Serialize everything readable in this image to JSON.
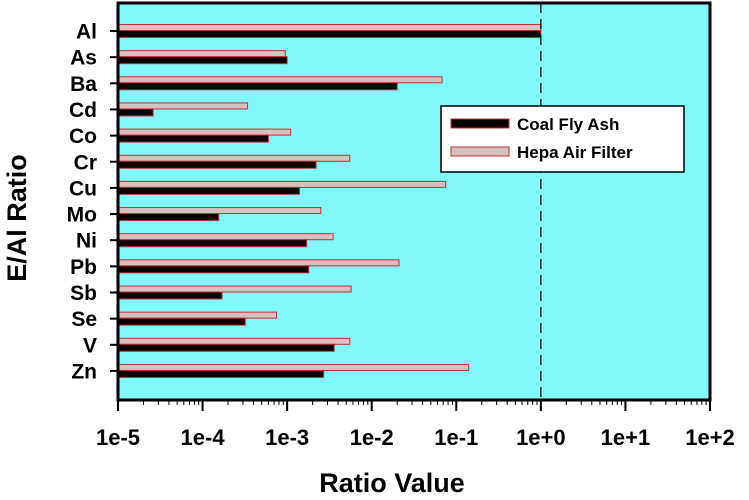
{
  "chart_data": {
    "type": "bar",
    "orientation": "horizontal",
    "xscale": "log",
    "title": "",
    "xlabel": "Ratio Value",
    "ylabel": "E/Al Ratio",
    "xlim": [
      1e-05,
      100
    ],
    "xticks": [
      1e-05,
      0.0001,
      0.001,
      0.01,
      0.1,
      1,
      10,
      100
    ],
    "xtick_labels": [
      "1e-5",
      "1e-4",
      "1e-3",
      "1e-2",
      "1e-1",
      "1e+0",
      "1e+1",
      "1e+2"
    ],
    "categories": [
      "Al",
      "As",
      "Ba",
      "Cd",
      "Co",
      "Cr",
      "Cu",
      "Mo",
      "Ni",
      "Pb",
      "Sb",
      "Se",
      "V",
      "Zn"
    ],
    "series": [
      {
        "name": "Coal Fly Ash",
        "color": "#0a0000",
        "values": [
          1.0,
          0.001,
          0.02,
          2.6e-05,
          0.0006,
          0.0022,
          0.0014,
          0.000155,
          0.0017,
          0.0018,
          0.00017,
          0.00032,
          0.0036,
          0.0027
        ]
      },
      {
        "name": "Hepa Air Filter",
        "color": "#d9c0c0",
        "values": [
          1.0,
          0.00095,
          0.068,
          0.00034,
          0.0011,
          0.0055,
          0.075,
          0.0025,
          0.0035,
          0.021,
          0.0057,
          0.00075,
          0.0055,
          0.14
        ]
      }
    ],
    "reference_line": {
      "x": 1,
      "style": "dashed"
    },
    "legend": {
      "position": "right-upper"
    },
    "colors": {
      "plot_bg": "#80f8fc",
      "bar_border": "#c03030"
    }
  }
}
